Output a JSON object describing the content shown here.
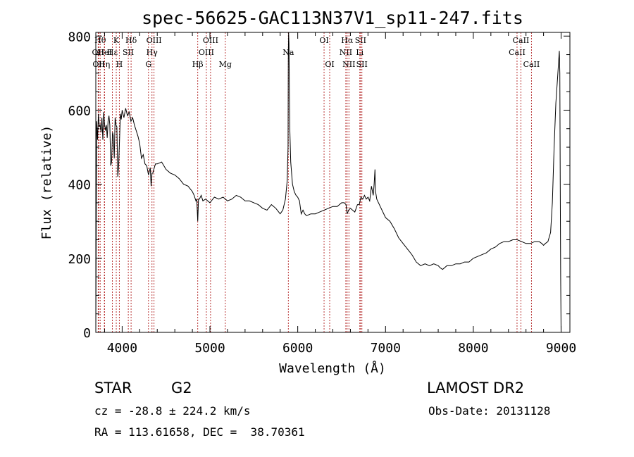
{
  "chart_data": {
    "type": "line",
    "title": "spec-56625-GAC113N37V1_sp11-247.fits",
    "xlabel": "Wavelength (Å)",
    "ylabel": "Flux (relative)",
    "xlim": [
      3700,
      9100
    ],
    "ylim": [
      0,
      810
    ],
    "xticks": [
      4000,
      5000,
      6000,
      7000,
      8000,
      9000
    ],
    "yticks": [
      0,
      200,
      400,
      600,
      800
    ],
    "grid": false,
    "series": [
      {
        "x": [
          3700,
          3710,
          3720,
          3730,
          3740,
          3750,
          3760,
          3770,
          3780,
          3790,
          3800,
          3810,
          3820,
          3830,
          3840,
          3850,
          3860,
          3870,
          3880,
          3890,
          3900,
          3910,
          3920,
          3930,
          3940,
          3950,
          3960,
          3970,
          3980,
          3990,
          4000,
          4020,
          4040,
          4060,
          4080,
          4100,
          4120,
          4140,
          4160,
          4180,
          4200,
          4220,
          4240,
          4260,
          4280,
          4300,
          4320,
          4330,
          4340,
          4350,
          4360,
          4380,
          4400,
          4450,
          4500,
          4550,
          4600,
          4650,
          4700,
          4750,
          4800,
          4820,
          4840,
          4850,
          4861,
          4870,
          4880,
          4900,
          4920,
          4950,
          5000,
          5050,
          5100,
          5150,
          5200,
          5250,
          5300,
          5350,
          5400,
          5450,
          5500,
          5550,
          5600,
          5650,
          5700,
          5750,
          5800,
          5830,
          5860,
          5880,
          5890,
          5893,
          5896,
          5900,
          5905,
          5910,
          5920,
          5940,
          5960,
          5980,
          6000,
          6020,
          6040,
          6060,
          6080,
          6100,
          6150,
          6200,
          6250,
          6300,
          6350,
          6400,
          6450,
          6500,
          6530,
          6550,
          6563,
          6580,
          6600,
          6650,
          6680,
          6700,
          6720,
          6740,
          6760,
          6780,
          6800,
          6820,
          6840,
          6860,
          6870,
          6880,
          6885,
          6890,
          6900,
          6950,
          7000,
          7050,
          7100,
          7150,
          7200,
          7250,
          7300,
          7350,
          7400,
          7450,
          7500,
          7550,
          7600,
          7620,
          7650,
          7700,
          7750,
          7800,
          7850,
          7900,
          7950,
          8000,
          8050,
          8100,
          8150,
          8200,
          8250,
          8300,
          8350,
          8400,
          8450,
          8500,
          8550,
          8600,
          8650,
          8700,
          8750,
          8780,
          8800,
          8820,
          8850,
          8880,
          8900,
          8920,
          8940,
          8960,
          8980,
          8985,
          8990,
          8995,
          9000
        ],
        "y": [
          0,
          570,
          520,
          590,
          555,
          560,
          540,
          580,
          520,
          595,
          560,
          545,
          560,
          525,
          570,
          585,
          560,
          450,
          460,
          540,
          530,
          470,
          580,
          560,
          555,
          420,
          450,
          520,
          590,
          575,
          600,
          580,
          605,
          585,
          595,
          570,
          580,
          560,
          545,
          530,
          510,
          470,
          480,
          455,
          450,
          425,
          445,
          395,
          430,
          430,
          440,
          455,
          455,
          460,
          440,
          430,
          425,
          415,
          400,
          395,
          380,
          370,
          355,
          360,
          300,
          360,
          360,
          370,
          355,
          360,
          350,
          365,
          360,
          365,
          355,
          360,
          370,
          365,
          355,
          355,
          350,
          345,
          335,
          330,
          345,
          335,
          320,
          330,
          360,
          410,
          500,
          750,
          810,
          780,
          650,
          550,
          460,
          400,
          380,
          370,
          365,
          355,
          320,
          330,
          320,
          315,
          320,
          320,
          325,
          330,
          335,
          340,
          340,
          350,
          350,
          345,
          320,
          330,
          335,
          325,
          345,
          345,
          365,
          360,
          370,
          360,
          365,
          355,
          395,
          370,
          400,
          440,
          380,
          375,
          360,
          335,
          310,
          300,
          280,
          255,
          240,
          225,
          210,
          190,
          180,
          185,
          180,
          185,
          180,
          175,
          170,
          180,
          180,
          185,
          185,
          190,
          190,
          200,
          205,
          210,
          215,
          225,
          230,
          240,
          245,
          245,
          250,
          250,
          245,
          240,
          240,
          245,
          245,
          240,
          235,
          240,
          245,
          270,
          350,
          500,
          620,
          690,
          760,
          700,
          400,
          150,
          0
        ]
      }
    ],
    "line_marks": [
      {
        "wave": 3727,
        "label": "OII",
        "row": 2
      },
      {
        "wave": 3734,
        "label": "OII",
        "row": 3
      },
      {
        "wave": 3750,
        "label": "Hθ",
        "row": 1
      },
      {
        "wave": 3797,
        "label": "Hη",
        "row": 3
      },
      {
        "wave": 3800,
        "label": "HeI",
        "row": 2
      },
      {
        "wave": 3889,
        "label": "Hε",
        "row": 2
      },
      {
        "wave": 3933,
        "label": "K",
        "row": 1
      },
      {
        "wave": 3968,
        "label": "H",
        "row": 3
      },
      {
        "wave": 4070,
        "label": "SII",
        "row": 2
      },
      {
        "wave": 4102,
        "label": "Hδ",
        "row": 1
      },
      {
        "wave": 4300,
        "label": "G",
        "row": 3
      },
      {
        "wave": 4340,
        "label": "Hγ",
        "row": 2
      },
      {
        "wave": 4363,
        "label": "OIII",
        "row": 1
      },
      {
        "wave": 4861,
        "label": "Hβ",
        "row": 3
      },
      {
        "wave": 4959,
        "label": "OIII",
        "row": 2
      },
      {
        "wave": 5007,
        "label": "OIII",
        "row": 1
      },
      {
        "wave": 5175,
        "label": "Mg",
        "row": 3
      },
      {
        "wave": 5893,
        "label": "Na",
        "row": 2
      },
      {
        "wave": 6300,
        "label": "OI",
        "row": 1
      },
      {
        "wave": 6364,
        "label": "OI",
        "row": 3
      },
      {
        "wave": 6548,
        "label": "NII",
        "row": 2
      },
      {
        "wave": 6563,
        "label": "Hα",
        "row": 1
      },
      {
        "wave": 6583,
        "label": "NII",
        "row": 3
      },
      {
        "wave": 6707,
        "label": "Li",
        "row": 2
      },
      {
        "wave": 6716,
        "label": "SII",
        "row": 1
      },
      {
        "wave": 6731,
        "label": "SII",
        "row": 3
      },
      {
        "wave": 8498,
        "label": "CaII",
        "row": 2
      },
      {
        "wave": 8542,
        "label": "CaII",
        "row": 1
      },
      {
        "wave": 8662,
        "label": "CaII",
        "row": 3
      }
    ],
    "colors": {
      "spectrum": "#000000",
      "line_marks": "#b22222",
      "axes": "#000000"
    }
  },
  "info": {
    "class": "STAR",
    "subclass": "G2",
    "survey": "LAMOST DR2",
    "cz": "cz = -28.8 ± 224.2 km/s",
    "obs_date": "Obs-Date: 20131128",
    "radec": "RA = 113.61658, DEC =  38.70361"
  }
}
